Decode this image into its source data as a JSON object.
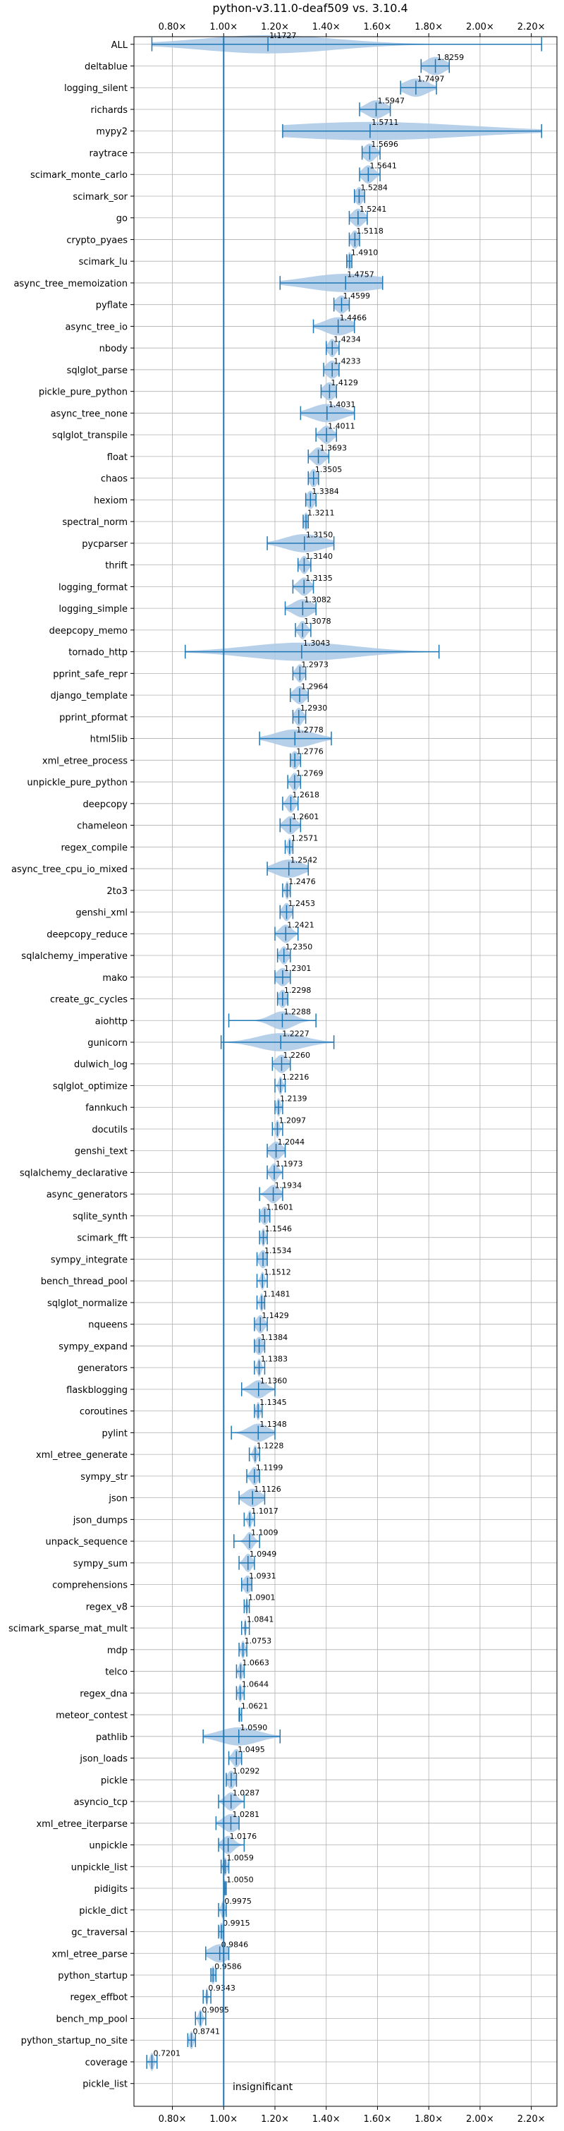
{
  "chart_data": {
    "type": "violin",
    "title": "python-v3.11.0-deaf509 vs. 3.10.4",
    "xlim": [
      0.65,
      2.3
    ],
    "xticks": [
      0.8,
      1.0,
      1.2,
      1.4,
      1.6,
      1.8,
      2.0,
      2.2
    ],
    "xtick_labels": [
      "0.80×",
      "1.00×",
      "1.20×",
      "1.40×",
      "1.60×",
      "1.80×",
      "2.00×",
      "2.20×"
    ],
    "reference_line": 1.0,
    "annotation": "insignificant",
    "grid": true,
    "colors": {
      "violin": "#a9c8e6",
      "line": "#1f77b4",
      "grid": "#b0b0b0"
    },
    "benchmarks": [
      {
        "name": "ALL",
        "value": 1.1727,
        "label": "1.1727",
        "min": 0.72,
        "max": 2.24,
        "spread": 0.35
      },
      {
        "name": "deltablue",
        "value": 1.8259,
        "label": "1.8259",
        "min": 1.77,
        "max": 1.88,
        "spread": 0.05
      },
      {
        "name": "logging_silent",
        "value": 1.7497,
        "label": "1.7497",
        "min": 1.69,
        "max": 1.83,
        "spread": 0.06
      },
      {
        "name": "richards",
        "value": 1.5947,
        "label": "1.5947",
        "min": 1.53,
        "max": 1.65,
        "spread": 0.05
      },
      {
        "name": "mypy2",
        "value": 1.5711,
        "label": "1.5711",
        "min": 1.23,
        "max": 2.24,
        "spread": 0.5
      },
      {
        "name": "raytrace",
        "value": 1.5696,
        "label": "1.5696",
        "min": 1.54,
        "max": 1.61,
        "spread": 0.03
      },
      {
        "name": "scimark_monte_carlo",
        "value": 1.5641,
        "label": "1.5641",
        "min": 1.53,
        "max": 1.61,
        "spread": 0.03
      },
      {
        "name": "scimark_sor",
        "value": 1.5284,
        "label": "1.5284",
        "min": 1.51,
        "max": 1.55,
        "spread": 0.02
      },
      {
        "name": "go",
        "value": 1.5241,
        "label": "1.5241",
        "min": 1.49,
        "max": 1.56,
        "spread": 0.03
      },
      {
        "name": "crypto_pyaes",
        "value": 1.5118,
        "label": "1.5118",
        "min": 1.49,
        "max": 1.53,
        "spread": 0.02
      },
      {
        "name": "scimark_lu",
        "value": 1.491,
        "label": "1.4910",
        "min": 1.48,
        "max": 1.5,
        "spread": 0.01
      },
      {
        "name": "async_tree_memoization",
        "value": 1.4757,
        "label": "1.4757",
        "min": 1.22,
        "max": 1.62,
        "spread": 0.2
      },
      {
        "name": "pyflate",
        "value": 1.4599,
        "label": "1.4599",
        "min": 1.43,
        "max": 1.49,
        "spread": 0.03
      },
      {
        "name": "async_tree_io",
        "value": 1.4466,
        "label": "1.4466",
        "min": 1.35,
        "max": 1.51,
        "spread": 0.07
      },
      {
        "name": "nbody",
        "value": 1.4234,
        "label": "1.4234",
        "min": 1.4,
        "max": 1.45,
        "spread": 0.02
      },
      {
        "name": "sqlglot_parse",
        "value": 1.4233,
        "label": "1.4233",
        "min": 1.39,
        "max": 1.45,
        "spread": 0.03
      },
      {
        "name": "pickle_pure_python",
        "value": 1.4129,
        "label": "1.4129",
        "min": 1.38,
        "max": 1.44,
        "spread": 0.03
      },
      {
        "name": "async_tree_none",
        "value": 1.4031,
        "label": "1.4031",
        "min": 1.3,
        "max": 1.51,
        "spread": 0.08
      },
      {
        "name": "sqlglot_transpile",
        "value": 1.4011,
        "label": "1.4011",
        "min": 1.36,
        "max": 1.44,
        "spread": 0.03
      },
      {
        "name": "float",
        "value": 1.3693,
        "label": "1.3693",
        "min": 1.33,
        "max": 1.41,
        "spread": 0.03
      },
      {
        "name": "chaos",
        "value": 1.3505,
        "label": "1.3505",
        "min": 1.33,
        "max": 1.37,
        "spread": 0.02
      },
      {
        "name": "hexiom",
        "value": 1.3384,
        "label": "1.3384",
        "min": 1.32,
        "max": 1.36,
        "spread": 0.02
      },
      {
        "name": "spectral_norm",
        "value": 1.3211,
        "label": "1.3211",
        "min": 1.31,
        "max": 1.33,
        "spread": 0.01
      },
      {
        "name": "pycparser",
        "value": 1.315,
        "label": "1.3150",
        "min": 1.17,
        "max": 1.43,
        "spread": 0.1
      },
      {
        "name": "thrift",
        "value": 1.314,
        "label": "1.3140",
        "min": 1.29,
        "max": 1.34,
        "spread": 0.02
      },
      {
        "name": "logging_format",
        "value": 1.3135,
        "label": "1.3135",
        "min": 1.27,
        "max": 1.35,
        "spread": 0.03
      },
      {
        "name": "logging_simple",
        "value": 1.3082,
        "label": "1.3082",
        "min": 1.24,
        "max": 1.36,
        "spread": 0.05
      },
      {
        "name": "deepcopy_memo",
        "value": 1.3078,
        "label": "1.3078",
        "min": 1.28,
        "max": 1.34,
        "spread": 0.02
      },
      {
        "name": "tornado_http",
        "value": 1.3043,
        "label": "1.3043",
        "min": 0.85,
        "max": 1.84,
        "spread": 0.28
      },
      {
        "name": "pprint_safe_repr",
        "value": 1.2973,
        "label": "1.2973",
        "min": 1.27,
        "max": 1.32,
        "spread": 0.02
      },
      {
        "name": "django_template",
        "value": 1.2964,
        "label": "1.2964",
        "min": 1.26,
        "max": 1.33,
        "spread": 0.03
      },
      {
        "name": "pprint_pformat",
        "value": 1.293,
        "label": "1.2930",
        "min": 1.27,
        "max": 1.32,
        "spread": 0.02
      },
      {
        "name": "html5lib",
        "value": 1.2778,
        "label": "1.2778",
        "min": 1.14,
        "max": 1.42,
        "spread": 0.1
      },
      {
        "name": "xml_etree_process",
        "value": 1.2776,
        "label": "1.2776",
        "min": 1.26,
        "max": 1.3,
        "spread": 0.02
      },
      {
        "name": "unpickle_pure_python",
        "value": 1.2769,
        "label": "1.2769",
        "min": 1.25,
        "max": 1.3,
        "spread": 0.02
      },
      {
        "name": "deepcopy",
        "value": 1.2618,
        "label": "1.2618",
        "min": 1.23,
        "max": 1.29,
        "spread": 0.02
      },
      {
        "name": "chameleon",
        "value": 1.2601,
        "label": "1.2601",
        "min": 1.22,
        "max": 1.3,
        "spread": 0.03
      },
      {
        "name": "regex_compile",
        "value": 1.2571,
        "label": "1.2571",
        "min": 1.24,
        "max": 1.27,
        "spread": 0.01
      },
      {
        "name": "async_tree_cpu_io_mixed",
        "value": 1.2542,
        "label": "1.2542",
        "min": 1.17,
        "max": 1.33,
        "spread": 0.07
      },
      {
        "name": "2to3",
        "value": 1.2476,
        "label": "1.2476",
        "min": 1.23,
        "max": 1.26,
        "spread": 0.01
      },
      {
        "name": "genshi_xml",
        "value": 1.2453,
        "label": "1.2453",
        "min": 1.22,
        "max": 1.27,
        "spread": 0.02
      },
      {
        "name": "deepcopy_reduce",
        "value": 1.2421,
        "label": "1.2421",
        "min": 1.2,
        "max": 1.29,
        "spread": 0.03
      },
      {
        "name": "sqlalchemy_imperative",
        "value": 1.235,
        "label": "1.2350",
        "min": 1.21,
        "max": 1.26,
        "spread": 0.02
      },
      {
        "name": "mako",
        "value": 1.2301,
        "label": "1.2301",
        "min": 1.2,
        "max": 1.26,
        "spread": 0.03
      },
      {
        "name": "create_gc_cycles",
        "value": 1.2298,
        "label": "1.2298",
        "min": 1.21,
        "max": 1.25,
        "spread": 0.02
      },
      {
        "name": "aiohttp",
        "value": 1.2288,
        "label": "1.2288",
        "min": 1.02,
        "max": 1.36,
        "spread": 0.06
      },
      {
        "name": "gunicorn",
        "value": 1.2227,
        "label": "1.2227",
        "min": 0.99,
        "max": 1.43,
        "spread": 0.12
      },
      {
        "name": "dulwich_log",
        "value": 1.226,
        "label": "1.2260",
        "min": 1.19,
        "max": 1.26,
        "spread": 0.03
      },
      {
        "name": "sqlglot_optimize",
        "value": 1.2216,
        "label": "1.2216",
        "min": 1.2,
        "max": 1.24,
        "spread": 0.01
      },
      {
        "name": "fannkuch",
        "value": 1.2139,
        "label": "1.2139",
        "min": 1.2,
        "max": 1.23,
        "spread": 0.01
      },
      {
        "name": "docutils",
        "value": 1.2097,
        "label": "1.2097",
        "min": 1.19,
        "max": 1.23,
        "spread": 0.01
      },
      {
        "name": "genshi_text",
        "value": 1.2044,
        "label": "1.2044",
        "min": 1.17,
        "max": 1.24,
        "spread": 0.03
      },
      {
        "name": "sqlalchemy_declarative",
        "value": 1.1973,
        "label": "1.1973",
        "min": 1.17,
        "max": 1.23,
        "spread": 0.02
      },
      {
        "name": "async_generators",
        "value": 1.1934,
        "label": "1.1934",
        "min": 1.14,
        "max": 1.23,
        "spread": 0.03
      },
      {
        "name": "sqlite_synth",
        "value": 1.1601,
        "label": "1.1601",
        "min": 1.14,
        "max": 1.18,
        "spread": 0.02
      },
      {
        "name": "scimark_fft",
        "value": 1.1546,
        "label": "1.1546",
        "min": 1.14,
        "max": 1.17,
        "spread": 0.01
      },
      {
        "name": "sympy_integrate",
        "value": 1.1534,
        "label": "1.1534",
        "min": 1.13,
        "max": 1.17,
        "spread": 0.02
      },
      {
        "name": "bench_thread_pool",
        "value": 1.1512,
        "label": "1.1512",
        "min": 1.13,
        "max": 1.17,
        "spread": 0.01
      },
      {
        "name": "sqlglot_normalize",
        "value": 1.1481,
        "label": "1.1481",
        "min": 1.13,
        "max": 1.16,
        "spread": 0.01
      },
      {
        "name": "nqueens",
        "value": 1.1429,
        "label": "1.1429",
        "min": 1.12,
        "max": 1.17,
        "spread": 0.02
      },
      {
        "name": "sympy_expand",
        "value": 1.1384,
        "label": "1.1384",
        "min": 1.12,
        "max": 1.16,
        "spread": 0.02
      },
      {
        "name": "generators",
        "value": 1.1383,
        "label": "1.1383",
        "min": 1.12,
        "max": 1.16,
        "spread": 0.01
      },
      {
        "name": "flaskblogging",
        "value": 1.136,
        "label": "1.1360",
        "min": 1.07,
        "max": 1.2,
        "spread": 0.04
      },
      {
        "name": "coroutines",
        "value": 1.1345,
        "label": "1.1345",
        "min": 1.12,
        "max": 1.15,
        "spread": 0.01
      },
      {
        "name": "pylint",
        "value": 1.1348,
        "label": "1.1348",
        "min": 1.03,
        "max": 1.2,
        "spread": 0.05
      },
      {
        "name": "xml_etree_generate",
        "value": 1.1228,
        "label": "1.1228",
        "min": 1.1,
        "max": 1.14,
        "spread": 0.01
      },
      {
        "name": "sympy_str",
        "value": 1.1199,
        "label": "1.1199",
        "min": 1.09,
        "max": 1.14,
        "spread": 0.02
      },
      {
        "name": "json",
        "value": 1.1126,
        "label": "1.1126",
        "min": 1.06,
        "max": 1.16,
        "spread": 0.04
      },
      {
        "name": "json_dumps",
        "value": 1.1017,
        "label": "1.1017",
        "min": 1.08,
        "max": 1.12,
        "spread": 0.01
      },
      {
        "name": "unpack_sequence",
        "value": 1.1009,
        "label": "1.1009",
        "min": 1.04,
        "max": 1.14,
        "spread": 0.02
      },
      {
        "name": "sympy_sum",
        "value": 1.0949,
        "label": "1.0949",
        "min": 1.06,
        "max": 1.12,
        "spread": 0.02
      },
      {
        "name": "comprehensions",
        "value": 1.0931,
        "label": "1.0931",
        "min": 1.07,
        "max": 1.11,
        "spread": 0.02
      },
      {
        "name": "regex_v8",
        "value": 1.0901,
        "label": "1.0901",
        "min": 1.08,
        "max": 1.1,
        "spread": 0.005
      },
      {
        "name": "scimark_sparse_mat_mult",
        "value": 1.0841,
        "label": "1.0841",
        "min": 1.07,
        "max": 1.1,
        "spread": 0.005
      },
      {
        "name": "mdp",
        "value": 1.0753,
        "label": "1.0753",
        "min": 1.06,
        "max": 1.09,
        "spread": 0.01
      },
      {
        "name": "telco",
        "value": 1.0663,
        "label": "1.0663",
        "min": 1.05,
        "max": 1.08,
        "spread": 0.01
      },
      {
        "name": "regex_dna",
        "value": 1.0644,
        "label": "1.0644",
        "min": 1.05,
        "max": 1.08,
        "spread": 0.01
      },
      {
        "name": "meteor_contest",
        "value": 1.0621,
        "label": "1.0621",
        "min": 1.06,
        "max": 1.07,
        "spread": 0.003
      },
      {
        "name": "pathlib",
        "value": 1.059,
        "label": "1.0590",
        "min": 0.92,
        "max": 1.22,
        "spread": 0.1
      },
      {
        "name": "json_loads",
        "value": 1.0495,
        "label": "1.0495",
        "min": 1.02,
        "max": 1.07,
        "spread": 0.02
      },
      {
        "name": "pickle",
        "value": 1.0292,
        "label": "1.0292",
        "min": 1.01,
        "max": 1.05,
        "spread": 0.02
      },
      {
        "name": "asyncio_tcp",
        "value": 1.0287,
        "label": "1.0287",
        "min": 0.98,
        "max": 1.08,
        "spread": 0.03
      },
      {
        "name": "xml_etree_iterparse",
        "value": 1.0281,
        "label": "1.0281",
        "min": 0.97,
        "max": 1.06,
        "spread": 0.04
      },
      {
        "name": "unpickle",
        "value": 1.0176,
        "label": "1.0176",
        "min": 0.98,
        "max": 1.08,
        "spread": 0.03
      },
      {
        "name": "unpickle_list",
        "value": 1.0059,
        "label": "1.0059",
        "min": 0.99,
        "max": 1.02,
        "spread": 0.01
      },
      {
        "name": "pidigits",
        "value": 1.005,
        "label": "1.0050",
        "min": 1.0,
        "max": 1.01,
        "spread": 0.004
      },
      {
        "name": "pickle_dict",
        "value": 0.9975,
        "label": "0.9975",
        "min": 0.98,
        "max": 1.01,
        "spread": 0.01
      },
      {
        "name": "gc_traversal",
        "value": 0.9915,
        "label": "0.9915",
        "min": 0.98,
        "max": 1.0,
        "spread": 0.01
      },
      {
        "name": "xml_etree_parse",
        "value": 0.9846,
        "label": "0.9846",
        "min": 0.93,
        "max": 1.02,
        "spread": 0.05
      },
      {
        "name": "python_startup",
        "value": 0.9586,
        "label": "0.9586",
        "min": 0.95,
        "max": 0.97,
        "spread": 0.01
      },
      {
        "name": "regex_effbot",
        "value": 0.9343,
        "label": "0.9343",
        "min": 0.92,
        "max": 0.95,
        "spread": 0.005
      },
      {
        "name": "bench_mp_pool",
        "value": 0.9095,
        "label": "0.9095",
        "min": 0.89,
        "max": 0.93,
        "spread": 0.01
      },
      {
        "name": "python_startup_no_site",
        "value": 0.8741,
        "label": "0.8741",
        "min": 0.86,
        "max": 0.89,
        "spread": 0.01
      },
      {
        "name": "coverage",
        "value": 0.7201,
        "label": "0.7201",
        "min": 0.7,
        "max": 0.74,
        "spread": 0.01
      },
      {
        "name": "pickle_list",
        "value": null,
        "label": "",
        "min": null,
        "max": null,
        "spread": 0
      }
    ]
  }
}
